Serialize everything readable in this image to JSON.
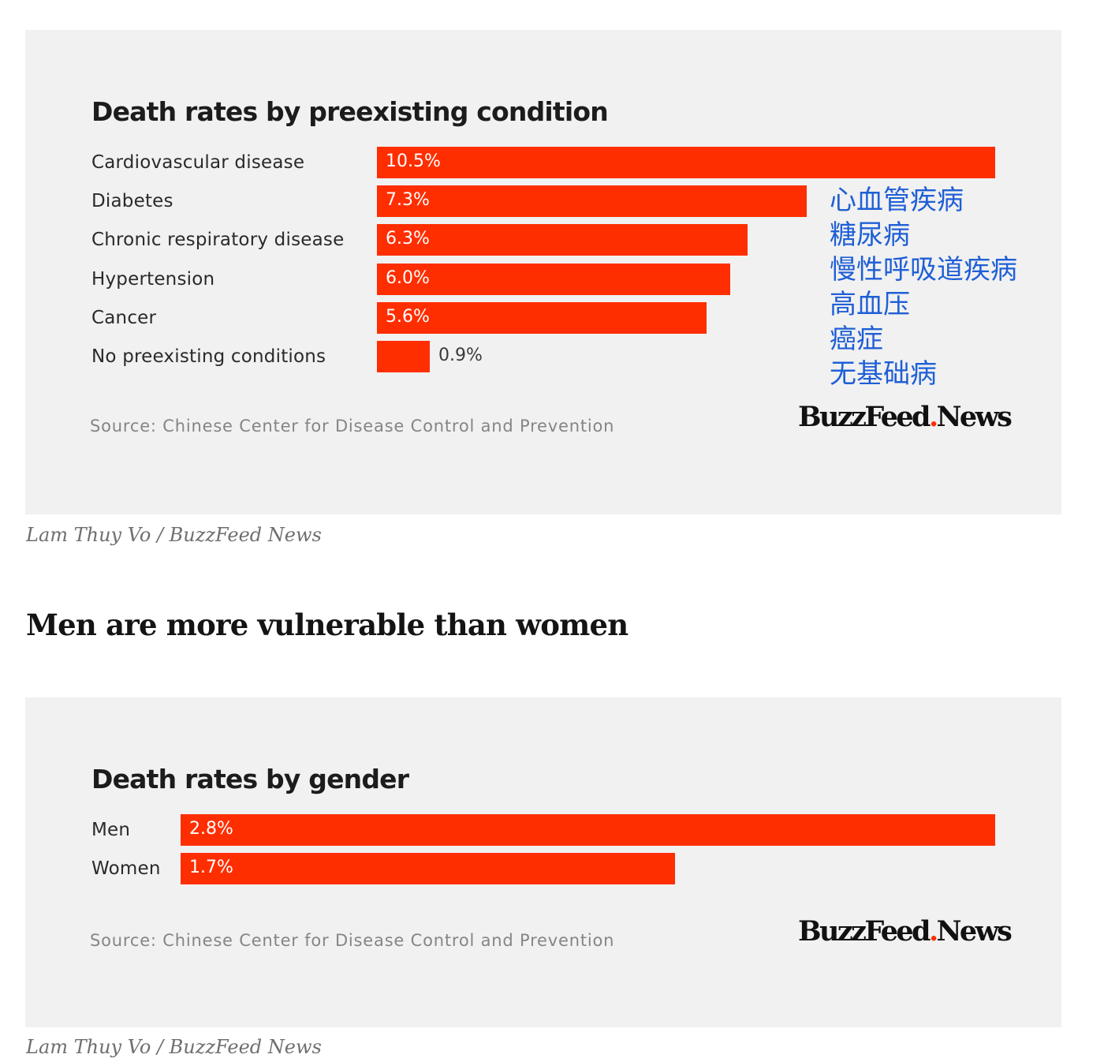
{
  "colors": {
    "bar": "#ff2e00",
    "panel_bg": "#f1f1f1",
    "annotation": "#1f5fd6",
    "logo_dot": "#ff2e00"
  },
  "chart_data": [
    {
      "type": "bar",
      "orientation": "horizontal",
      "title": "Death rates by preexisting condition",
      "categories": [
        "Cardiovascular disease",
        "Diabetes",
        "Chronic respiratory disease",
        "Hypertension",
        "Cancer",
        "No preexisting conditions"
      ],
      "values": [
        10.5,
        7.3,
        6.3,
        6.0,
        5.6,
        0.9
      ],
      "value_labels": [
        "10.5%",
        "7.3%",
        "6.3%",
        "6.0%",
        "5.6%",
        "0.9%"
      ],
      "unit": "%",
      "xlim": [
        0,
        10.5
      ],
      "source": "Source: Chinese Center for Disease Control and Prevention",
      "annotations": [
        "心血管疾病",
        "糖尿病",
        "慢性呼吸道疾病",
        "高血压",
        "癌症",
        "无基础病"
      ]
    },
    {
      "type": "bar",
      "orientation": "horizontal",
      "title": "Death rates by gender",
      "categories": [
        "Men",
        "Women"
      ],
      "values": [
        2.8,
        1.7
      ],
      "value_labels": [
        "2.8%",
        "1.7%"
      ],
      "unit": "%",
      "xlim": [
        0,
        2.8
      ],
      "source": "Source: Chinese Center for Disease Control and Prevention"
    }
  ],
  "logo": {
    "brand": "BuzzFeed",
    "dot": ".",
    "suffix": "News"
  },
  "credits": [
    "Lam Thuy Vo / BuzzFeed News",
    "Lam Thuy Vo / BuzzFeed News"
  ],
  "section_heading": "Men are more vulnerable than women"
}
